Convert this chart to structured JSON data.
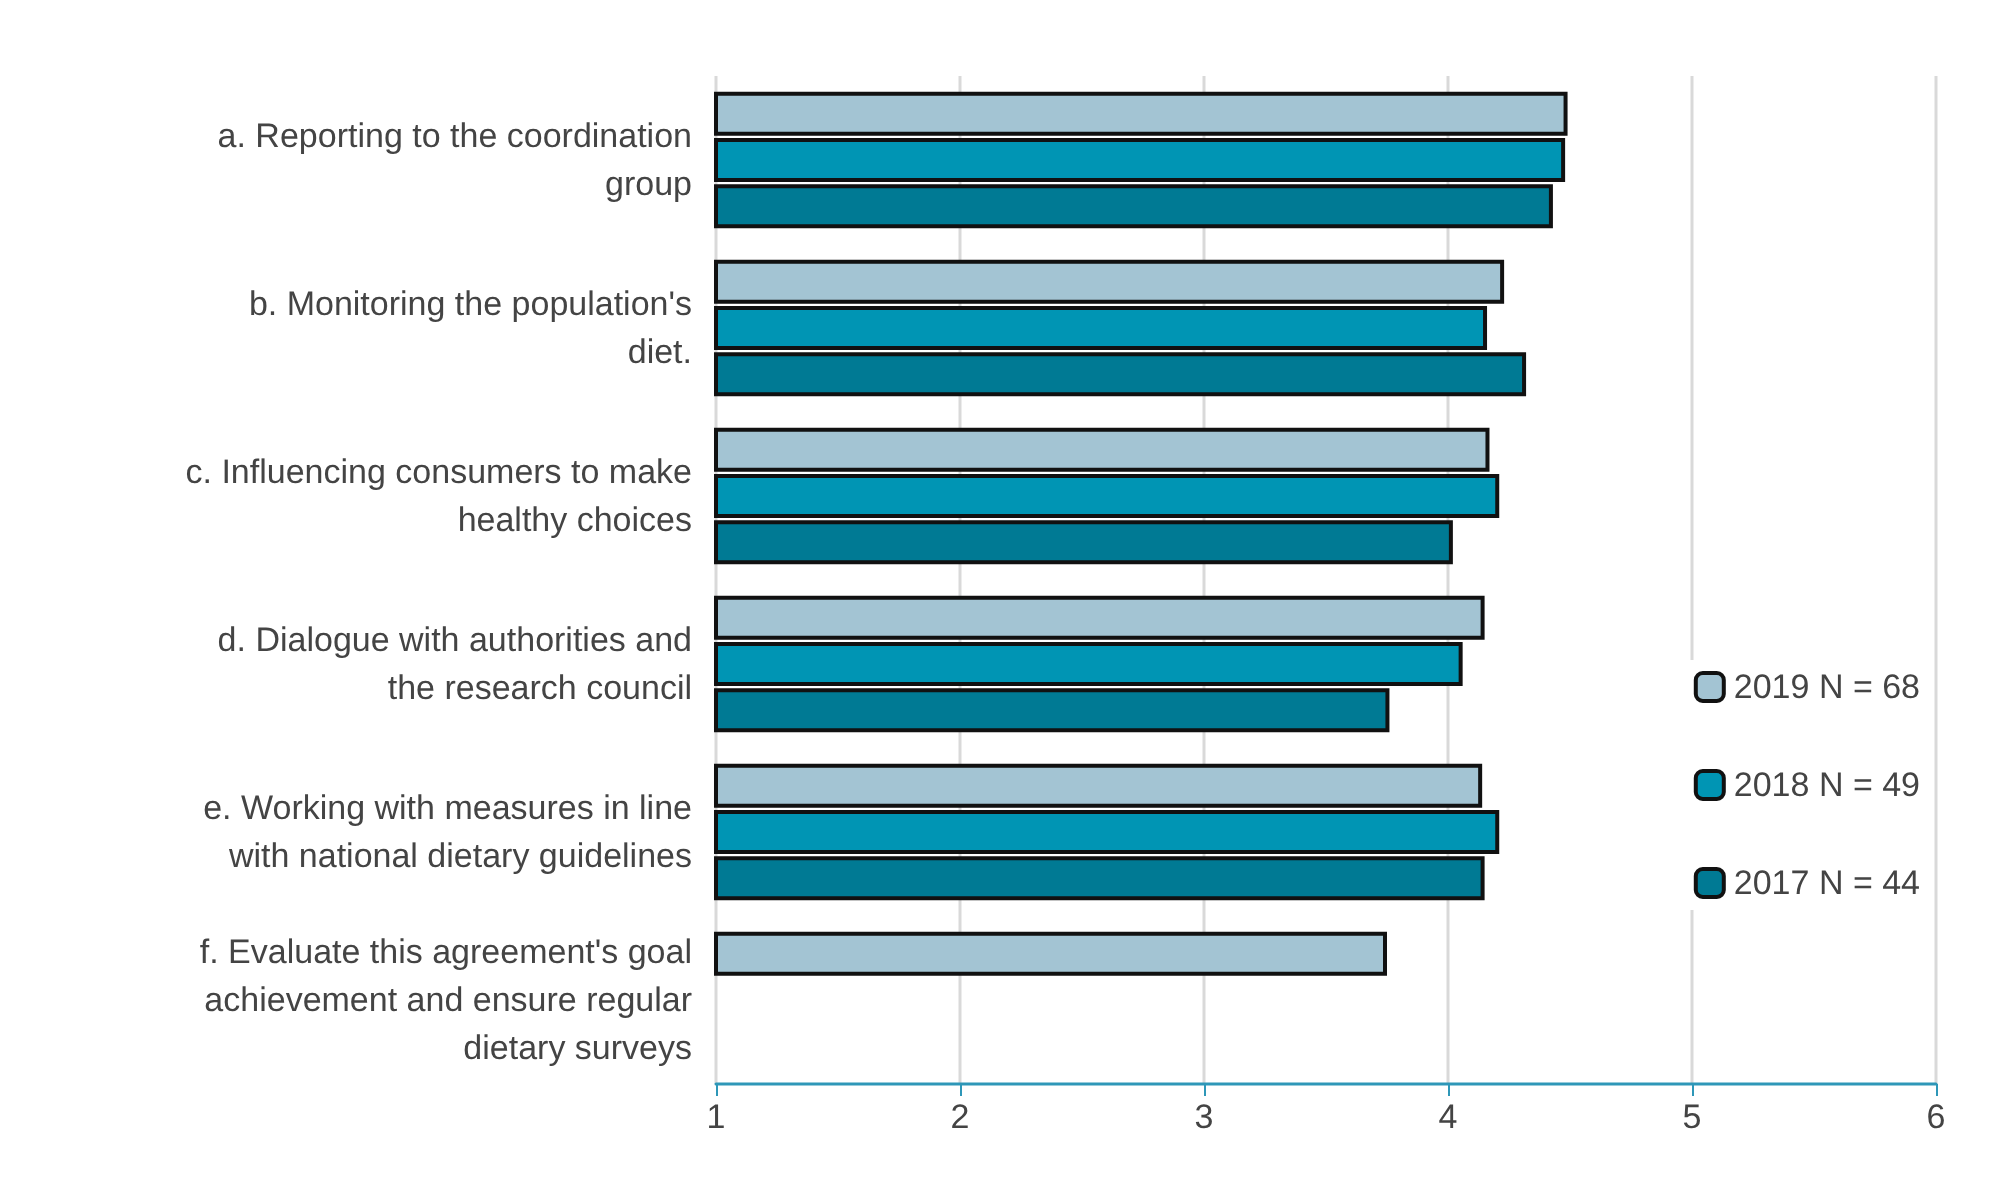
{
  "chart_data": {
    "type": "bar",
    "orientation": "horizontal",
    "categories": [
      "a. Reporting to the coordination group",
      "b. Monitoring the population's diet.",
      "c. Influencing consumers to make healthy choices",
      "d. Dialogue with authorities and the research council",
      "e. Working with measures in line with national dietary guidelines",
      "f. Evaluate this agreement's goal achievement and ensure regular dietary surveys"
    ],
    "series": [
      {
        "name": "2019 N = 68",
        "color": "#a3c4d3",
        "values": [
          4.49,
          4.23,
          4.17,
          4.15,
          4.14,
          3.75
        ]
      },
      {
        "name": "2018 N = 49",
        "color": "#0095b4",
        "values": [
          4.48,
          4.16,
          4.21,
          4.06,
          4.21,
          null
        ]
      },
      {
        "name": "2017 N = 44",
        "color": "#007a94",
        "values": [
          4.43,
          4.32,
          4.02,
          3.76,
          4.15,
          null
        ]
      }
    ],
    "xlim": [
      1,
      6
    ],
    "xticks": [
      1,
      2,
      3,
      4,
      5,
      6
    ],
    "grid": "x",
    "legend": "right"
  }
}
